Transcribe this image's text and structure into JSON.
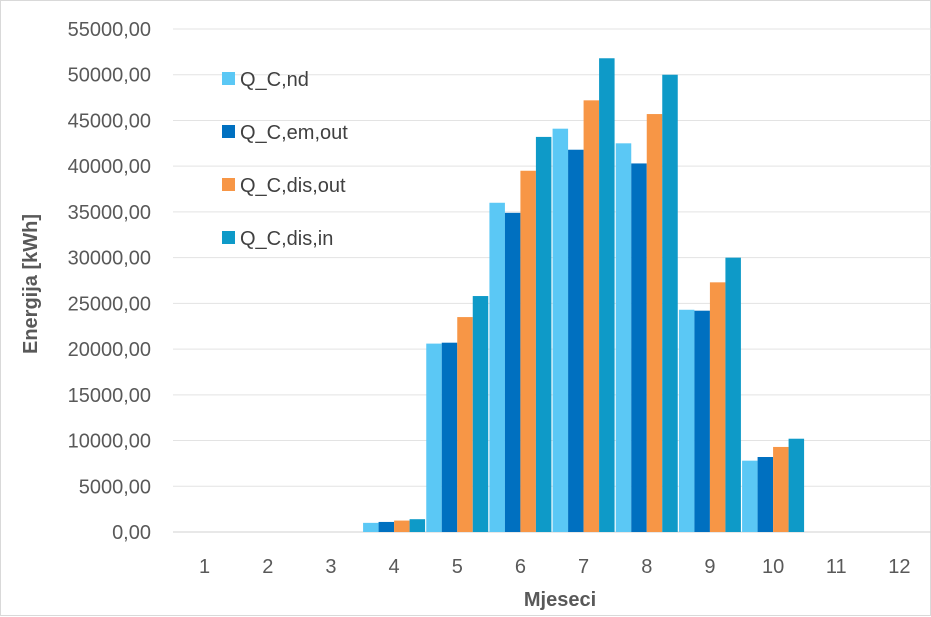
{
  "chart_data": {
    "type": "bar",
    "xlabel": "Mjeseci",
    "ylabel": "Energija [kWh]",
    "categories": [
      "1",
      "2",
      "3",
      "4",
      "5",
      "6",
      "7",
      "8",
      "9",
      "10",
      "11",
      "12"
    ],
    "ylim": [
      0,
      55000
    ],
    "ytick_step": 5000,
    "ytick_labels": [
      "0,00",
      "5000,00",
      "10000,00",
      "15000,00",
      "20000,00",
      "25000,00",
      "30000,00",
      "35000,00",
      "40000,00",
      "45000,00",
      "50000,00",
      "55000,00"
    ],
    "grid": true,
    "legend_position": "top-left",
    "series": [
      {
        "name": "Q_C,nd",
        "color": "#5bc8f5",
        "values": [
          0,
          0,
          0,
          1000,
          20600,
          36000,
          44100,
          42500,
          24300,
          7800,
          0,
          0
        ]
      },
      {
        "name": "Q_C,em,out",
        "color": "#0070c0",
        "values": [
          0,
          0,
          0,
          1100,
          20700,
          34900,
          41800,
          40300,
          24200,
          8200,
          0,
          0
        ]
      },
      {
        "name": "Q_C,dis,out",
        "color": "#f79646",
        "values": [
          0,
          0,
          0,
          1250,
          23500,
          39500,
          47200,
          45700,
          27300,
          9300,
          0,
          0
        ]
      },
      {
        "name": "Q_C,dis,in",
        "color": "#0e9ac8",
        "values": [
          0,
          0,
          0,
          1400,
          25800,
          43200,
          51800,
          50000,
          30000,
          10200,
          0,
          0
        ]
      }
    ]
  }
}
